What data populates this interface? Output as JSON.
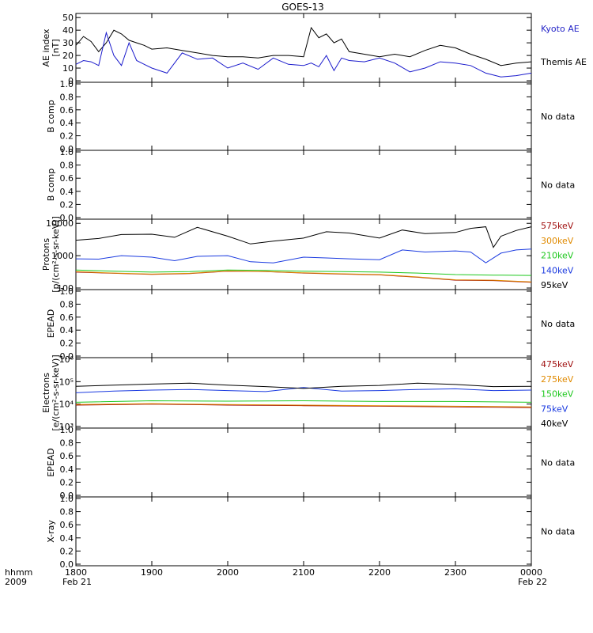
{
  "chart_data": {
    "title": "GOES-13",
    "type": "line",
    "x_axis": {
      "ticks": [
        "1800",
        "1900",
        "2000",
        "2100",
        "2200",
        "2300",
        "0000"
      ],
      "start_label": "hhmm",
      "year_label": "2009",
      "start_date": "Feb 21",
      "end_date": "Feb 22",
      "range_hours": [
        18,
        24
      ]
    },
    "panels": [
      {
        "id": "ae",
        "ylabel": "AE index",
        "ylabel2": "[nT]",
        "scale": "linear",
        "ylim": [
          0,
          52
        ],
        "yticks": [
          "0",
          "10",
          "20",
          "30",
          "40",
          "50"
        ],
        "ytick_values": [
          0,
          10,
          20,
          30,
          40,
          50
        ],
        "series": [
          {
            "name": "Themis AE",
            "color": "#000000",
            "label_color": "#000000",
            "x": [
              18.0,
              18.1,
              18.2,
              18.3,
              18.4,
              18.5,
              18.6,
              18.7,
              18.8,
              18.9,
              19.0,
              19.2,
              19.4,
              19.6,
              19.8,
              20.0,
              20.2,
              20.4,
              20.6,
              20.8,
              21.0,
              21.1,
              21.2,
              21.3,
              21.4,
              21.5,
              21.6,
              21.8,
              22.0,
              22.2,
              22.4,
              22.6,
              22.8,
              23.0,
              23.2,
              23.4,
              23.6,
              23.8,
              24.0
            ],
            "values": [
              28,
              35,
              31,
              23,
              30,
              40,
              37,
              32,
              30,
              28,
              25,
              26,
              24,
              22,
              20,
              19,
              19,
              18,
              20,
              20,
              19,
              42,
              34,
              37,
              30,
              33,
              23,
              21,
              19,
              21,
              19,
              24,
              28,
              26,
              21,
              17,
              12,
              14,
              15
            ]
          },
          {
            "name": "Kyoto AE",
            "color": "#1a1acc",
            "label_color": "#2525c8",
            "x": [
              18.0,
              18.1,
              18.2,
              18.3,
              18.4,
              18.5,
              18.6,
              18.7,
              18.8,
              18.9,
              19.0,
              19.2,
              19.4,
              19.6,
              19.8,
              20.0,
              20.2,
              20.4,
              20.6,
              20.8,
              21.0,
              21.1,
              21.2,
              21.3,
              21.4,
              21.5,
              21.6,
              21.8,
              22.0,
              22.2,
              22.4,
              22.6,
              22.8,
              23.0,
              23.2,
              23.4,
              23.6,
              23.8,
              24.0
            ],
            "values": [
              13,
              16,
              15,
              12,
              38,
              20,
              12,
              30,
              16,
              13,
              10,
              6,
              22,
              17,
              18,
              10,
              14,
              9,
              18,
              13,
              12,
              14,
              11,
              20,
              8,
              18,
              16,
              15,
              18,
              14,
              7,
              10,
              15,
              14,
              12,
              6,
              3,
              4,
              6
            ]
          }
        ]
      },
      {
        "id": "b1",
        "ylabel": "B comp",
        "scale": "linear",
        "ylim": [
          0,
          1
        ],
        "yticks": [
          "0.0",
          "0.2",
          "0.4",
          "0.6",
          "0.8",
          "1.0"
        ],
        "ytick_values": [
          0,
          0.2,
          0.4,
          0.6,
          0.8,
          1.0
        ],
        "status": "No data"
      },
      {
        "id": "b2",
        "ylabel": "B comp",
        "scale": "linear",
        "ylim": [
          0,
          1
        ],
        "yticks": [
          "0.0",
          "0.2",
          "0.4",
          "0.6",
          "0.8",
          "1.0"
        ],
        "ytick_values": [
          0,
          0.2,
          0.4,
          0.6,
          0.8,
          1.0
        ],
        "status": "No data"
      },
      {
        "id": "protons",
        "ylabel": "Protons",
        "ylabel2": "[p/(cm²-s-sr-keV)]",
        "scale": "log",
        "ylim": [
          100,
          12000
        ],
        "yticks": [
          "100",
          "1000",
          "10000"
        ],
        "ytick_values": [
          100,
          1000,
          10000
        ],
        "series": [
          {
            "name": "575keV",
            "color": "#a01010",
            "label_color": "#a01010",
            "x": [
              18.0,
              18.5,
              19.0,
              19.5,
              20.0,
              20.5,
              21.0,
              21.5,
              22.0,
              22.5,
              23.0,
              23.5,
              24.0
            ],
            "values": [
              310,
              285,
              265,
              280,
              330,
              320,
              290,
              270,
              255,
              215,
              175,
              170,
              150
            ]
          },
          {
            "name": "300keV",
            "color": "#e08a00",
            "label_color": "#e08a00",
            "x": [
              18.0,
              18.5,
              19.0,
              19.5,
              20.0,
              20.5,
              21.0,
              21.5,
              22.0,
              22.5,
              23.0,
              23.5,
              24.0
            ],
            "values": [
              320,
              290,
              270,
              285,
              335,
              325,
              295,
              275,
              260,
              220,
              180,
              175,
              155
            ]
          },
          {
            "name": "210keV",
            "color": "#1ec81e",
            "label_color": "#1ec81e",
            "x": [
              18.0,
              18.5,
              19.0,
              19.5,
              20.0,
              20.5,
              21.0,
              21.5,
              22.0,
              22.5,
              23.0,
              23.5,
              24.0
            ],
            "values": [
              360,
              330,
              310,
              320,
              360,
              350,
              330,
              320,
              310,
              290,
              260,
              250,
              245
            ]
          },
          {
            "name": "140keV",
            "color": "#1a3ae0",
            "label_color": "#1a3ae0",
            "x": [
              18.0,
              18.3,
              18.6,
              19.0,
              19.3,
              19.6,
              20.0,
              20.3,
              20.6,
              21.0,
              21.3,
              21.6,
              22.0,
              22.3,
              22.6,
              23.0,
              23.2,
              23.4,
              23.6,
              23.8,
              24.0
            ],
            "values": [
              800,
              780,
              1000,
              900,
              700,
              950,
              1000,
              650,
              600,
              900,
              850,
              800,
              750,
              1500,
              1300,
              1400,
              1300,
              600,
              1200,
              1500,
              1600
            ]
          },
          {
            "name": "95keV",
            "color": "#000000",
            "label_color": "#000000",
            "x": [
              18.0,
              18.3,
              18.6,
              19.0,
              19.3,
              19.6,
              20.0,
              20.3,
              20.6,
              21.0,
              21.3,
              21.6,
              22.0,
              22.3,
              22.6,
              23.0,
              23.2,
              23.4,
              23.5,
              23.6,
              23.8,
              24.0
            ],
            "values": [
              3000,
              3400,
              4500,
              4600,
              3700,
              7500,
              4000,
              2300,
              2800,
              3500,
              5500,
              5000,
              3500,
              6200,
              4800,
              5200,
              7000,
              7800,
              1800,
              4000,
              6000,
              7800
            ]
          }
        ]
      },
      {
        "id": "epead1",
        "ylabel": "EPEAD",
        "scale": "linear",
        "ylim": [
          0,
          1
        ],
        "yticks": [
          "0.0",
          "0.2",
          "0.4",
          "0.6",
          "0.8",
          "1.0"
        ],
        "ytick_values": [
          0,
          0.2,
          0.4,
          0.6,
          0.8,
          1.0
        ],
        "status": "No data"
      },
      {
        "id": "electrons",
        "ylabel": "Electrons",
        "ylabel2": "[e/(cm²-s-sr-keV)]",
        "scale": "log",
        "ylim": [
          1000,
          1000000
        ],
        "yticks": [
          "10³",
          "10⁴",
          "10⁵",
          "10⁶"
        ],
        "ytick_values": [
          1000,
          10000,
          100000,
          1000000
        ],
        "series": [
          {
            "name": "475keV",
            "color": "#a01010",
            "label_color": "#a01010",
            "x": [
              18.0,
              19.0,
              20.0,
              21.0,
              22.0,
              23.0,
              24.0
            ],
            "values": [
              9000,
              10000,
              9000,
              8500,
              8000,
              7500,
              7000
            ]
          },
          {
            "name": "275keV",
            "color": "#e08a00",
            "label_color": "#e08a00",
            "x": [
              18.0,
              19.0,
              20.0,
              21.0,
              22.0,
              23.0,
              24.0
            ],
            "values": [
              9500,
              10500,
              9500,
              9000,
              8500,
              8000,
              7500
            ]
          },
          {
            "name": "150keV",
            "color": "#1ec81e",
            "label_color": "#1ec81e",
            "x": [
              18.0,
              19.0,
              20.0,
              21.0,
              22.0,
              23.0,
              24.0
            ],
            "values": [
              12000,
              14000,
              13500,
              14000,
              13000,
              13000,
              12000
            ]
          },
          {
            "name": "75keV",
            "color": "#1a3ae0",
            "label_color": "#1a3ae0",
            "x": [
              18.0,
              18.5,
              19.0,
              19.5,
              20.0,
              20.5,
              21.0,
              21.5,
              22.0,
              22.5,
              23.0,
              23.5,
              24.0
            ],
            "values": [
              32000,
              38000,
              42000,
              45000,
              40000,
              36000,
              55000,
              38000,
              40000,
              45000,
              48000,
              40000,
              42000
            ]
          },
          {
            "name": "40keV",
            "color": "#000000",
            "label_color": "#000000",
            "x": [
              18.0,
              18.5,
              19.0,
              19.5,
              20.0,
              20.5,
              21.0,
              21.5,
              22.0,
              22.5,
              23.0,
              23.5,
              24.0
            ],
            "values": [
              62000,
              70000,
              78000,
              85000,
              70000,
              60000,
              50000,
              62000,
              68000,
              85000,
              75000,
              60000,
              62000
            ]
          }
        ]
      },
      {
        "id": "epead2",
        "ylabel": "EPEAD",
        "scale": "linear",
        "ylim": [
          0,
          1
        ],
        "yticks": [
          "0.0",
          "0.2",
          "0.4",
          "0.6",
          "0.8",
          "1.0"
        ],
        "ytick_values": [
          0,
          0.2,
          0.4,
          0.6,
          0.8,
          1.0
        ],
        "status": "No data"
      },
      {
        "id": "xray",
        "ylabel": "X-ray",
        "scale": "linear",
        "ylim": [
          0,
          1
        ],
        "yticks": [
          "0.0",
          "0.2",
          "0.4",
          "0.6",
          "0.8",
          "1.0"
        ],
        "ytick_values": [
          0,
          0.2,
          0.4,
          0.6,
          0.8,
          1.0
        ],
        "status": "No data"
      }
    ]
  }
}
